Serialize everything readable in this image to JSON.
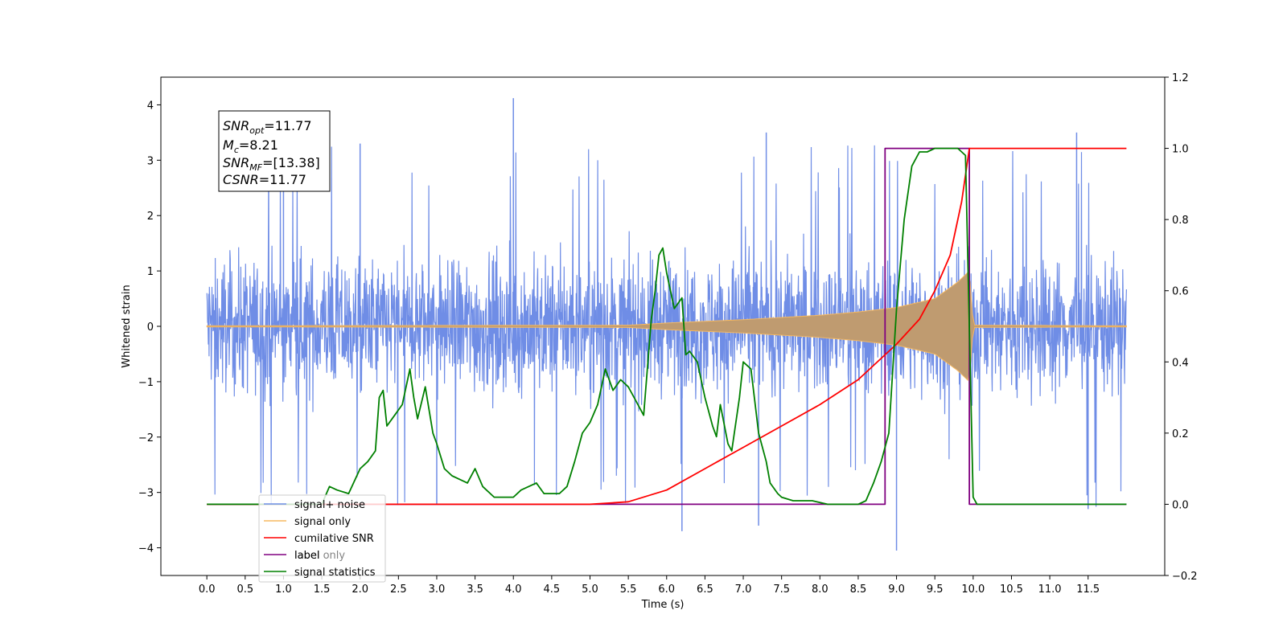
{
  "chart_data": {
    "type": "line",
    "xlabel": "Time (s)",
    "ylabel": "Whitened strain",
    "xlim": [
      -0.6,
      12.5
    ],
    "ylim": [
      -4.5,
      4.5
    ],
    "y2lim": [
      -0.2,
      1.2
    ],
    "x_ticks": [
      0.0,
      0.5,
      1.0,
      1.5,
      2.0,
      2.5,
      3.0,
      3.5,
      4.0,
      4.5,
      5.0,
      5.5,
      6.0,
      6.5,
      7.0,
      7.5,
      8.0,
      8.5,
      9.0,
      9.5,
      10.0,
      10.5,
      11.0,
      11.5
    ],
    "x_tick_labels": [
      "0.0",
      "0.5",
      "1.0",
      "1.5",
      "2.0",
      "2.5",
      "3.0",
      "3.5",
      "4.0",
      "4.5",
      "5.0",
      "5.5",
      "6.0",
      "6.5",
      "7.0",
      "7.5",
      "8.0",
      "8.5",
      "9.0",
      "9.5",
      "10.0",
      "10.5",
      "11.0",
      "11.5"
    ],
    "y_ticks": [
      -4,
      -3,
      -2,
      -1,
      0,
      1,
      2,
      3,
      4
    ],
    "y_tick_labels": [
      "−4",
      "−3",
      "−2",
      "−1",
      "0",
      "1",
      "2",
      "3",
      "4"
    ],
    "y2_ticks": [
      -0.2,
      0.0,
      0.2,
      0.4,
      0.6,
      0.8,
      1.0,
      1.2
    ],
    "y2_tick_labels": [
      "−0.2",
      "0.0",
      "0.2",
      "0.4",
      "0.6",
      "0.8",
      "1.0",
      "1.2"
    ],
    "grid": false,
    "legend_position": "lower-left",
    "colors": {
      "signal_noise": "#6f8de6",
      "signal_only": "#f5b860",
      "signal_only_fill": "#bf9b70",
      "cumulative_snr": "#ff0000",
      "label": "#800080",
      "label_only": "#f5b860",
      "signal_statistics": "#008000"
    },
    "annotation": {
      "snr_opt": {
        "base": "SNR",
        "sub": "opt",
        "value": "=11.77"
      },
      "mc": {
        "base": "M",
        "sub": "c",
        "value": "=8.21"
      },
      "snr_mf": {
        "base": "SNR",
        "sub": "MF",
        "value": "=[13.38]"
      },
      "csnr": {
        "base": "CSNR",
        "sub": "",
        "value": "=11.77"
      }
    },
    "series": [
      {
        "name": "signal+ noise",
        "axis": "left",
        "description_range": [
          -2.0,
          2.0
        ],
        "x_range": [
          0.0,
          12.0
        ],
        "spikes": [
          [
            4.0,
            4.12
          ],
          [
            9.0,
            -4.05
          ],
          [
            11.35,
            3.5
          ],
          [
            6.2,
            -3.7
          ],
          [
            7.2,
            -3.6
          ],
          [
            3.0,
            -3.2
          ],
          [
            2.0,
            3.3
          ],
          [
            11.5,
            -3.3
          ],
          [
            1.0,
            3.45
          ],
          [
            7.3,
            3.5
          ]
        ]
      },
      {
        "name": "signal only",
        "axis": "left",
        "envelope": {
          "x": [
            0.0,
            5.5,
            6.0,
            7.0,
            8.0,
            8.5,
            9.0,
            9.5,
            9.8,
            9.95,
            10.0,
            12.0
          ],
          "amp": [
            0.01,
            0.02,
            0.06,
            0.12,
            0.2,
            0.26,
            0.34,
            0.5,
            0.8,
            1.0,
            0.02,
            0.01
          ]
        }
      },
      {
        "name": "cumilative SNR",
        "axis": "right",
        "x": [
          0.0,
          5.0,
          5.5,
          6.0,
          6.5,
          7.0,
          7.5,
          8.0,
          8.5,
          9.0,
          9.3,
          9.5,
          9.7,
          9.85,
          9.95,
          12.0
        ],
        "values": [
          0.0,
          0.0,
          0.007,
          0.04,
          0.1,
          0.16,
          0.22,
          0.28,
          0.35,
          0.45,
          0.52,
          0.6,
          0.7,
          0.85,
          1.0,
          1.0
        ]
      },
      {
        "name": "label",
        "axis": "right",
        "x": [
          0.0,
          8.85,
          8.85,
          9.95,
          9.95,
          12.0
        ],
        "values": [
          0.0,
          0.0,
          1.0,
          1.0,
          0.0,
          0.0
        ]
      },
      {
        "name": "label only",
        "axis": "right"
      },
      {
        "name": "signal statistics",
        "axis": "right",
        "x": [
          0.0,
          1.5,
          1.6,
          1.7,
          1.85,
          2.0,
          2.1,
          2.2,
          2.25,
          2.3,
          2.35,
          2.45,
          2.55,
          2.65,
          2.7,
          2.75,
          2.85,
          2.95,
          3.0,
          3.1,
          3.2,
          3.3,
          3.4,
          3.5,
          3.6,
          3.75,
          4.0,
          4.1,
          4.2,
          4.3,
          4.4,
          4.5,
          4.6,
          4.7,
          4.8,
          4.9,
          5.0,
          5.1,
          5.2,
          5.3,
          5.4,
          5.5,
          5.6,
          5.7,
          5.8,
          5.85,
          5.9,
          5.95,
          6.0,
          6.05,
          6.1,
          6.2,
          6.25,
          6.3,
          6.4,
          6.5,
          6.6,
          6.65,
          6.7,
          6.8,
          6.85,
          6.95,
          7.0,
          7.1,
          7.2,
          7.3,
          7.35,
          7.45,
          7.5,
          7.65,
          7.75,
          7.9,
          8.1,
          8.3,
          8.5,
          8.6,
          8.7,
          8.8,
          8.9,
          9.0,
          9.1,
          9.2,
          9.3,
          9.4,
          9.5,
          9.8,
          9.9,
          10.0,
          10.05,
          12.0
        ],
        "values": [
          0.0,
          0.0,
          0.05,
          0.04,
          0.03,
          0.1,
          0.12,
          0.15,
          0.3,
          0.32,
          0.22,
          0.25,
          0.28,
          0.38,
          0.3,
          0.24,
          0.33,
          0.2,
          0.17,
          0.1,
          0.08,
          0.07,
          0.06,
          0.1,
          0.05,
          0.02,
          0.02,
          0.04,
          0.05,
          0.06,
          0.03,
          0.03,
          0.03,
          0.05,
          0.12,
          0.2,
          0.23,
          0.28,
          0.38,
          0.32,
          0.35,
          0.33,
          0.29,
          0.25,
          0.52,
          0.6,
          0.7,
          0.72,
          0.65,
          0.6,
          0.55,
          0.58,
          0.42,
          0.43,
          0.4,
          0.3,
          0.22,
          0.19,
          0.28,
          0.17,
          0.15,
          0.3,
          0.4,
          0.38,
          0.2,
          0.12,
          0.06,
          0.03,
          0.02,
          0.01,
          0.01,
          0.01,
          0.0,
          0.0,
          0.0,
          0.01,
          0.06,
          0.12,
          0.2,
          0.55,
          0.8,
          0.95,
          0.99,
          0.99,
          1.0,
          1.0,
          0.98,
          0.02,
          0.0,
          0.0
        ]
      }
    ]
  }
}
